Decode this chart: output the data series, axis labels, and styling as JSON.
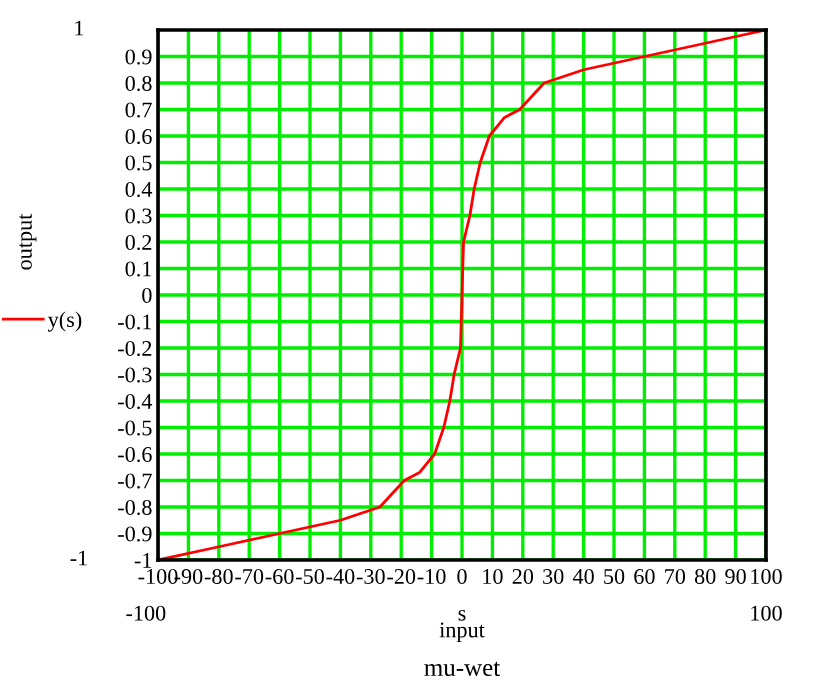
{
  "chart_data": {
    "type": "line",
    "title": "mu-wet",
    "xlabel": "input",
    "ylabel": "output",
    "annotations": [
      "1",
      "-1",
      "-100",
      "s",
      "100"
    ],
    "x": [
      -100,
      -80,
      -60,
      -40,
      -27,
      -19,
      -14,
      -9,
      -6,
      -4,
      -2.6,
      -0.5,
      0,
      0.5,
      2.6,
      4,
      6,
      9,
      14,
      19,
      27,
      40,
      60,
      80,
      100
    ],
    "series": [
      {
        "name": "y(s)",
        "color": "#ff0000",
        "values": [
          -1,
          -0.95,
          -0.9,
          -0.85,
          -0.8,
          -0.7,
          -0.67,
          -0.6,
          -0.5,
          -0.4,
          -0.3,
          -0.2,
          0,
          0.2,
          0.3,
          0.4,
          0.5,
          0.6,
          0.67,
          0.7,
          0.8,
          0.85,
          0.9,
          0.95,
          1
        ]
      }
    ],
    "xlim": [
      -100,
      100
    ],
    "ylim": [
      -1,
      1
    ],
    "xticks": [
      -100,
      -90,
      -80,
      -70,
      -60,
      -50,
      -40,
      -30,
      -20,
      -10,
      0,
      10,
      20,
      30,
      40,
      50,
      60,
      70,
      80,
      90,
      100
    ],
    "yticks": [
      -1,
      -0.9,
      -0.8,
      -0.7,
      -0.6,
      -0.5,
      -0.4,
      -0.3,
      -0.2,
      -0.1,
      0,
      0.1,
      0.2,
      0.3,
      0.4,
      0.5,
      0.6,
      0.7,
      0.8,
      0.9
    ],
    "grid": true,
    "legend": "left",
    "marker": "none",
    "line_style": "solid"
  }
}
